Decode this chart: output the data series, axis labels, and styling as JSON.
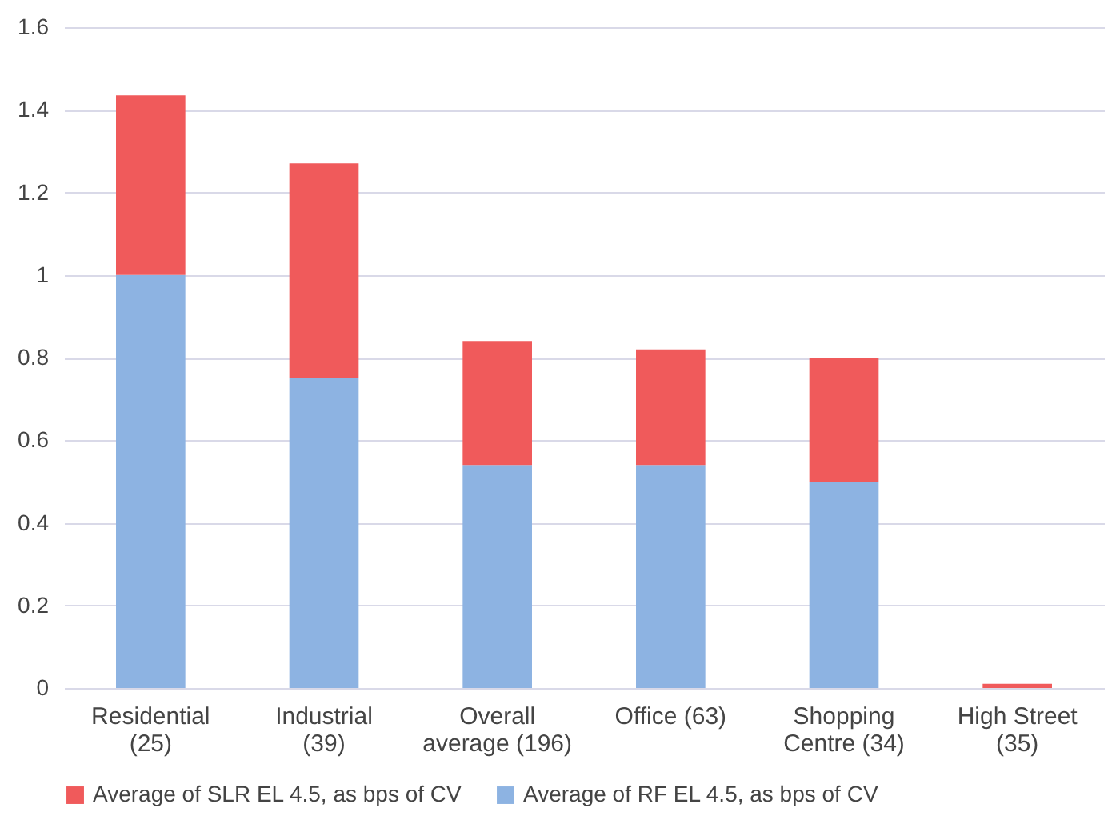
{
  "chart_data": {
    "type": "bar",
    "stacked": true,
    "categories": [
      "Residential\n(25)",
      "Industrial\n(39)",
      "Overall\naverage (196)",
      "Office (63)",
      "Shopping\nCentre (34)",
      "High Street\n(35)"
    ],
    "series": [
      {
        "name": "Average of RF EL 4.5, as bps of CV",
        "color": "#8db3e2",
        "values": [
          1.0,
          0.75,
          0.54,
          0.54,
          0.5,
          0
        ]
      },
      {
        "name": "Average of SLR EL 4.5, as bps of CV",
        "color": "#f05a5b",
        "values": [
          0.435,
          0.52,
          0.3,
          0.28,
          0.3,
          0.01
        ]
      }
    ],
    "ylim": [
      0,
      1.6
    ],
    "yticks": [
      0,
      0.2,
      0.4,
      0.6,
      0.8,
      1,
      1.2,
      1.4,
      1.6
    ],
    "grid": "y",
    "legend": "bottom"
  }
}
